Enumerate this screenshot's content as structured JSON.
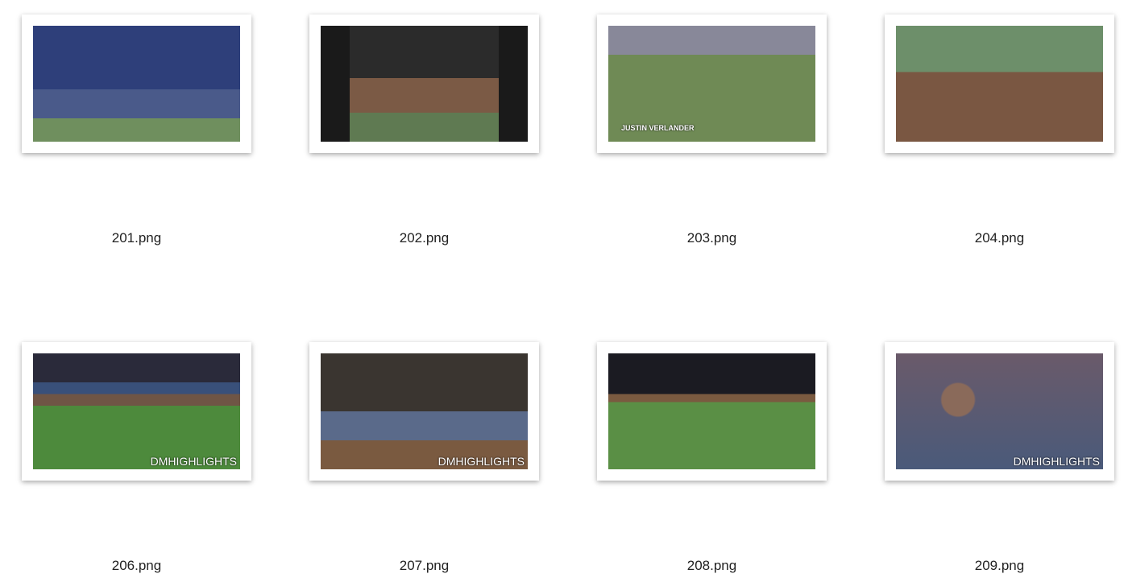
{
  "files": [
    {
      "name": "201.png"
    },
    {
      "name": "202.png"
    },
    {
      "name": "203.png",
      "overlay": "JUSTIN VERLANDER"
    },
    {
      "name": "204.png"
    },
    {
      "name": "206.png",
      "overlay": "DMHIGHLIGHTS"
    },
    {
      "name": "207.png",
      "overlay": "DMHIGHLIGHTS"
    },
    {
      "name": "208.png"
    },
    {
      "name": "209.png",
      "overlay": "DMHIGHLIGHTS"
    }
  ]
}
